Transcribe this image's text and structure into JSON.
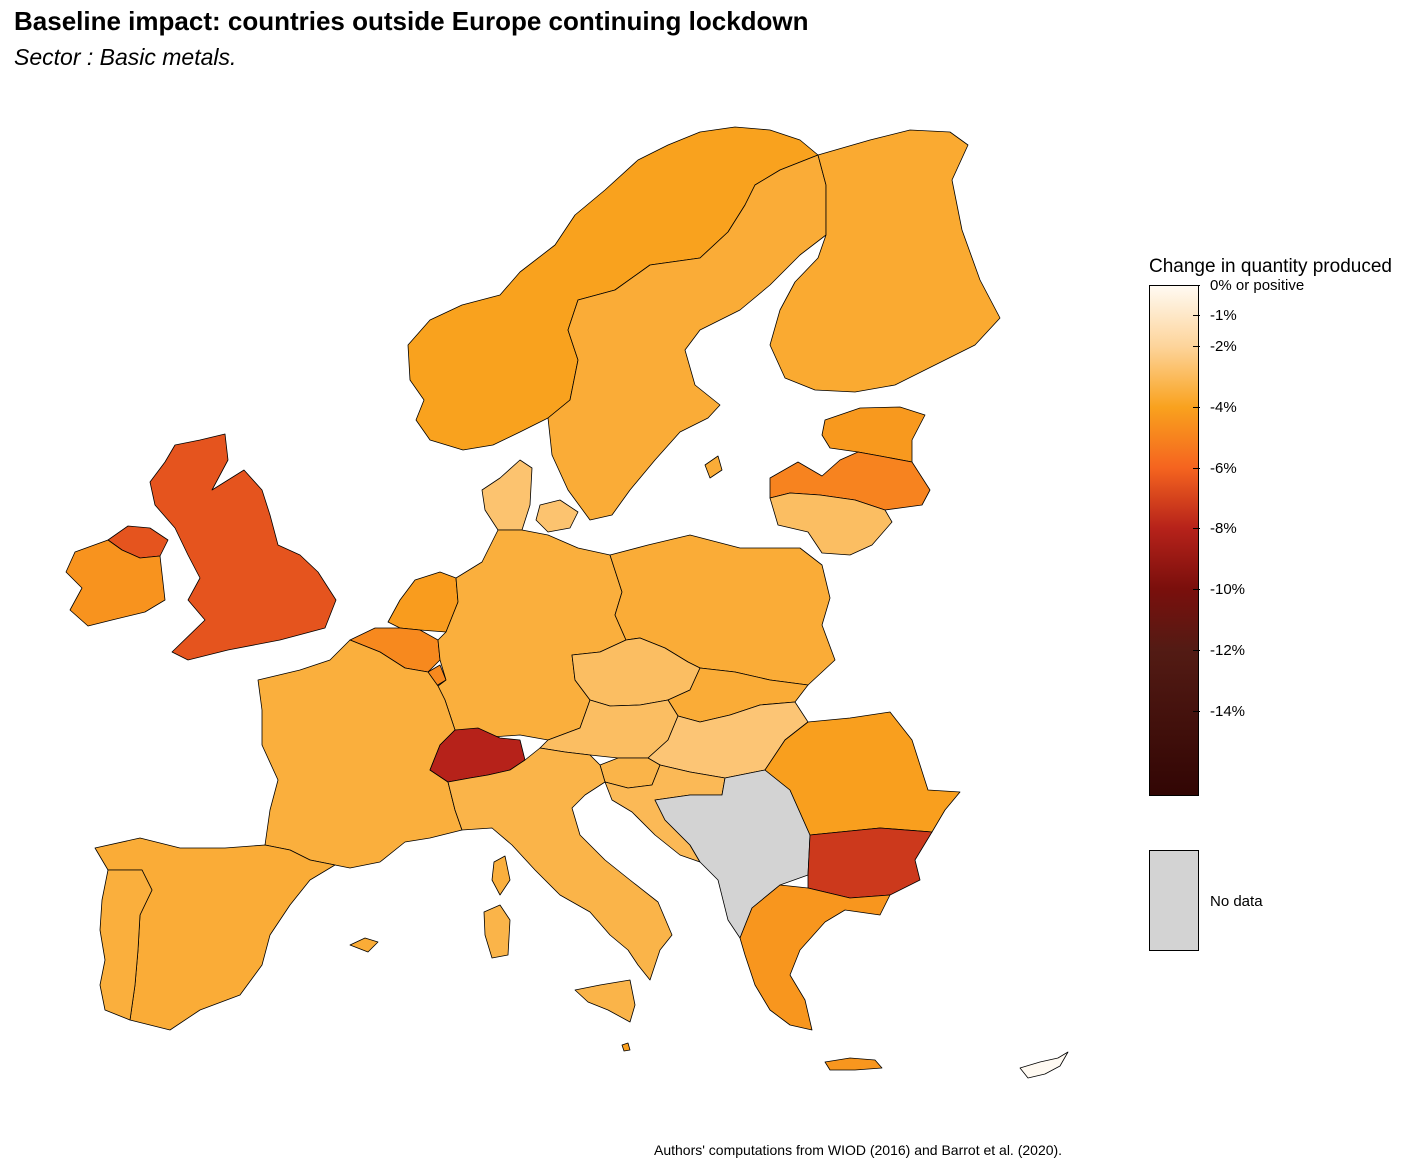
{
  "header": {
    "title": "Baseline impact: countries outside Europe continuing lockdown",
    "subtitle": "Sector : Basic metals."
  },
  "legend": {
    "title": "Change in quantity produced",
    "scale": {
      "min": -16.8,
      "max": 0,
      "stops": [
        {
          "value": 0,
          "color": "#fffaf2"
        },
        {
          "value": -2,
          "color": "#fdd49a"
        },
        {
          "value": -4,
          "color": "#f9a21e"
        },
        {
          "value": -6,
          "color": "#f5641f"
        },
        {
          "value": -8,
          "color": "#b6221a"
        },
        {
          "value": -10,
          "color": "#7a0f0c"
        },
        {
          "value": -12,
          "color": "#531b14"
        },
        {
          "value": -16.8,
          "color": "#320604"
        }
      ]
    },
    "ticks": [
      {
        "value": 0,
        "label": "0% or positive"
      },
      {
        "value": -1,
        "label": "-1%"
      },
      {
        "value": -2,
        "label": "-2%"
      },
      {
        "value": -4,
        "label": "-4%"
      },
      {
        "value": -6,
        "label": "-6%"
      },
      {
        "value": -8,
        "label": "-8%"
      },
      {
        "value": -10,
        "label": "-10%"
      },
      {
        "value": -12,
        "label": "-12%"
      },
      {
        "value": -14,
        "label": "-14%"
      }
    ],
    "no_data_label": "No data",
    "no_data_color": "#d3d3d3"
  },
  "map_data": {
    "countries": [
      {
        "id": "norway",
        "value": -4.0
      },
      {
        "id": "sweden",
        "value": -3.6
      },
      {
        "id": "finland",
        "value": -3.7
      },
      {
        "id": "estonia",
        "value": -4.3
      },
      {
        "id": "latvia",
        "value": -5.0
      },
      {
        "id": "lithuania",
        "value": -2.9
      },
      {
        "id": "uk",
        "value": -6.5
      },
      {
        "id": "ireland",
        "value": -4.5
      },
      {
        "id": "northern-ireland",
        "value": -6.5
      },
      {
        "id": "denmark",
        "value": -2.7
      },
      {
        "id": "netherlands",
        "value": -4.2
      },
      {
        "id": "belgium",
        "value": -4.8
      },
      {
        "id": "luxembourg",
        "value": -4.8
      },
      {
        "id": "germany",
        "value": -3.5
      },
      {
        "id": "poland",
        "value": -3.6
      },
      {
        "id": "czechia",
        "value": -2.9
      },
      {
        "id": "slovakia",
        "value": -3.6
      },
      {
        "id": "austria",
        "value": -2.9
      },
      {
        "id": "hungary",
        "value": -2.6
      },
      {
        "id": "slovenia",
        "value": -3.3
      },
      {
        "id": "croatia",
        "value": -3.1
      },
      {
        "id": "romania",
        "value": -4.1
      },
      {
        "id": "bulgaria",
        "value": -7.3
      },
      {
        "id": "greece",
        "value": -4.4
      },
      {
        "id": "france",
        "value": -3.5
      },
      {
        "id": "switzerland",
        "value": -8.0
      },
      {
        "id": "italy",
        "value": -3.3
      },
      {
        "id": "spain",
        "value": -3.6
      },
      {
        "id": "portugal",
        "value": -3.5
      },
      {
        "id": "malta",
        "value": -4.1
      },
      {
        "id": "cyprus",
        "value": 0
      },
      {
        "id": "western-balkans",
        "value": null
      }
    ]
  },
  "caption": "Authors' computations from WIOD (2016) and Barrot et al. (2020)."
}
